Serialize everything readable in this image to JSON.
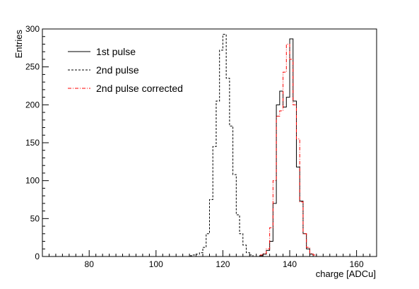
{
  "chart_data": {
    "type": "step-histogram",
    "xlabel": "charge [ADCu]",
    "ylabel": "Entries",
    "xlim": [
      66,
      166
    ],
    "ylim": [
      0,
      300
    ],
    "x_ticks": [
      80,
      100,
      120,
      140,
      160
    ],
    "y_ticks": [
      0,
      50,
      100,
      150,
      200,
      250,
      300
    ],
    "grid": false,
    "legend_position": "top-left",
    "bin_width": 1,
    "series": [
      {
        "name": "1st pulse",
        "color": "#000000",
        "style": "solid",
        "bins": [
          [
            131,
            1
          ],
          [
            132,
            3
          ],
          [
            133,
            8
          ],
          [
            134,
            20
          ],
          [
            135,
            70
          ],
          [
            136,
            200
          ],
          [
            137,
            218
          ],
          [
            138,
            197
          ],
          [
            139,
            210
          ],
          [
            140,
            287
          ],
          [
            141,
            205
          ],
          [
            142,
            118
          ],
          [
            143,
            73
          ],
          [
            144,
            30
          ],
          [
            145,
            10
          ],
          [
            146,
            3
          ]
        ]
      },
      {
        "name": "2nd pulse",
        "color": "#000000",
        "style": "dashed",
        "bins": [
          [
            110,
            1
          ],
          [
            111,
            2
          ],
          [
            112,
            3
          ],
          [
            113,
            5
          ],
          [
            114,
            12
          ],
          [
            115,
            30
          ],
          [
            116,
            75
          ],
          [
            117,
            145
          ],
          [
            118,
            205
          ],
          [
            119,
            272
          ],
          [
            120,
            293
          ],
          [
            121,
            235
          ],
          [
            122,
            172
          ],
          [
            123,
            108
          ],
          [
            124,
            55
          ],
          [
            125,
            30
          ],
          [
            126,
            15
          ],
          [
            127,
            5
          ],
          [
            128,
            2
          ]
        ]
      },
      {
        "name": "2nd pulse corrected",
        "color": "#ff0000",
        "style": "dash-dot",
        "bins": [
          [
            131,
            2
          ],
          [
            132,
            4
          ],
          [
            133,
            10
          ],
          [
            134,
            38
          ],
          [
            135,
            100
          ],
          [
            136,
            185
          ],
          [
            137,
            192
          ],
          [
            138,
            243
          ],
          [
            139,
            280
          ],
          [
            140,
            260
          ],
          [
            141,
            200
          ],
          [
            142,
            155
          ],
          [
            143,
            72
          ],
          [
            144,
            30
          ],
          [
            145,
            12
          ],
          [
            146,
            4
          ],
          [
            147,
            2
          ]
        ]
      }
    ]
  }
}
